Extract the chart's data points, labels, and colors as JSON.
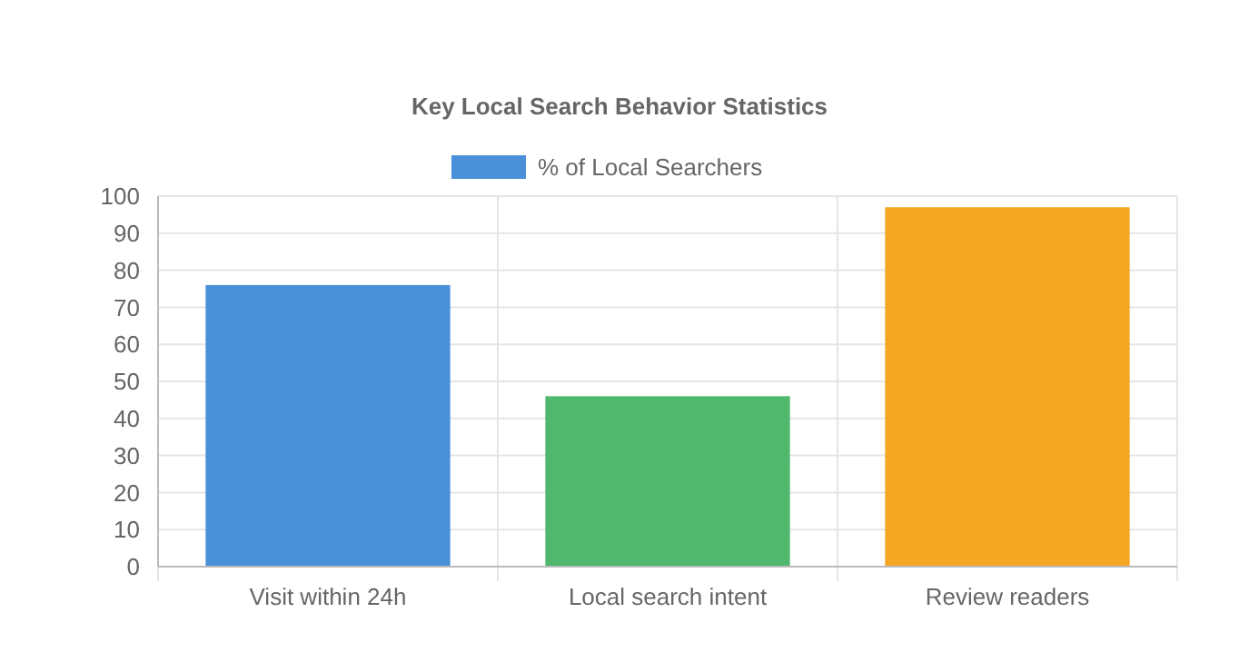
{
  "chart_data": {
    "type": "bar",
    "title": "Key Local Search Behavior Statistics",
    "categories": [
      "Visit within 24h",
      "Local search intent",
      "Review readers"
    ],
    "series": [
      {
        "name": "% of Local Searchers",
        "color": "#4a90d9",
        "colors": [
          "#4a90d9",
          "#50b86c",
          "#f5a623"
        ],
        "values": [
          76,
          46,
          97
        ]
      }
    ],
    "ylim": [
      0,
      100
    ],
    "yticks": [
      0,
      10,
      20,
      30,
      40,
      50,
      60,
      70,
      80,
      90,
      100
    ],
    "grid": true,
    "legend": "top"
  }
}
